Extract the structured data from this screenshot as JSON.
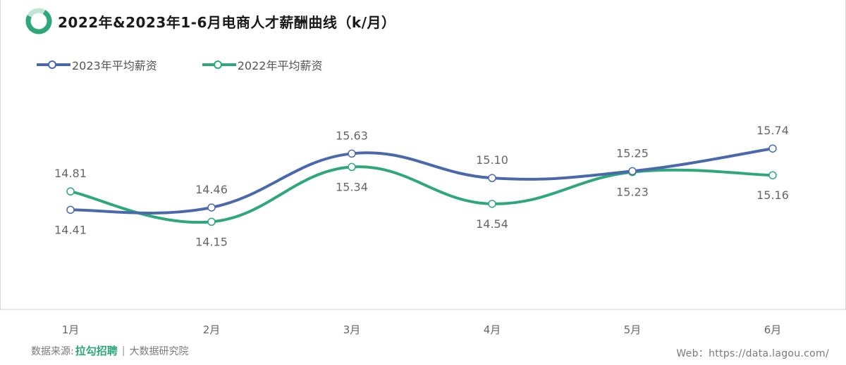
{
  "header": {
    "title": "2022年&2023年1-6月电商人才薪酬曲线（k/月）"
  },
  "colors": {
    "series_2023": "#4a69ad",
    "series_2022": "#2ea77a",
    "axis": "#cccccc",
    "label": "#666666"
  },
  "chart_data": {
    "type": "line",
    "title": "2022年&2023年1-6月电商人才薪酬曲线（k/月）",
    "categories": [
      "1月",
      "2月",
      "3月",
      "4月",
      "5月",
      "6月"
    ],
    "series": [
      {
        "name": "2023年平均薪资",
        "values": [
          14.41,
          14.46,
          15.63,
          15.1,
          15.25,
          15.74
        ],
        "labels": [
          "14.41",
          "14.46",
          "15.63",
          "15.10",
          "15.25",
          "15.74"
        ]
      },
      {
        "name": "2022年平均薪资",
        "values": [
          14.81,
          14.15,
          15.34,
          14.54,
          15.23,
          15.16
        ],
        "labels": [
          "14.81",
          "14.15",
          "15.34",
          "14.54",
          "15.23",
          "15.16"
        ]
      }
    ],
    "smooth": true,
    "legend_position": "top-left",
    "grid": false
  },
  "footer": {
    "source_prefix": "数据来源:",
    "source_brand": "拉勾招聘",
    "source_sep": "|",
    "source_dept": "大数据研究院",
    "web": "Web：https://data.lagou.com/"
  }
}
